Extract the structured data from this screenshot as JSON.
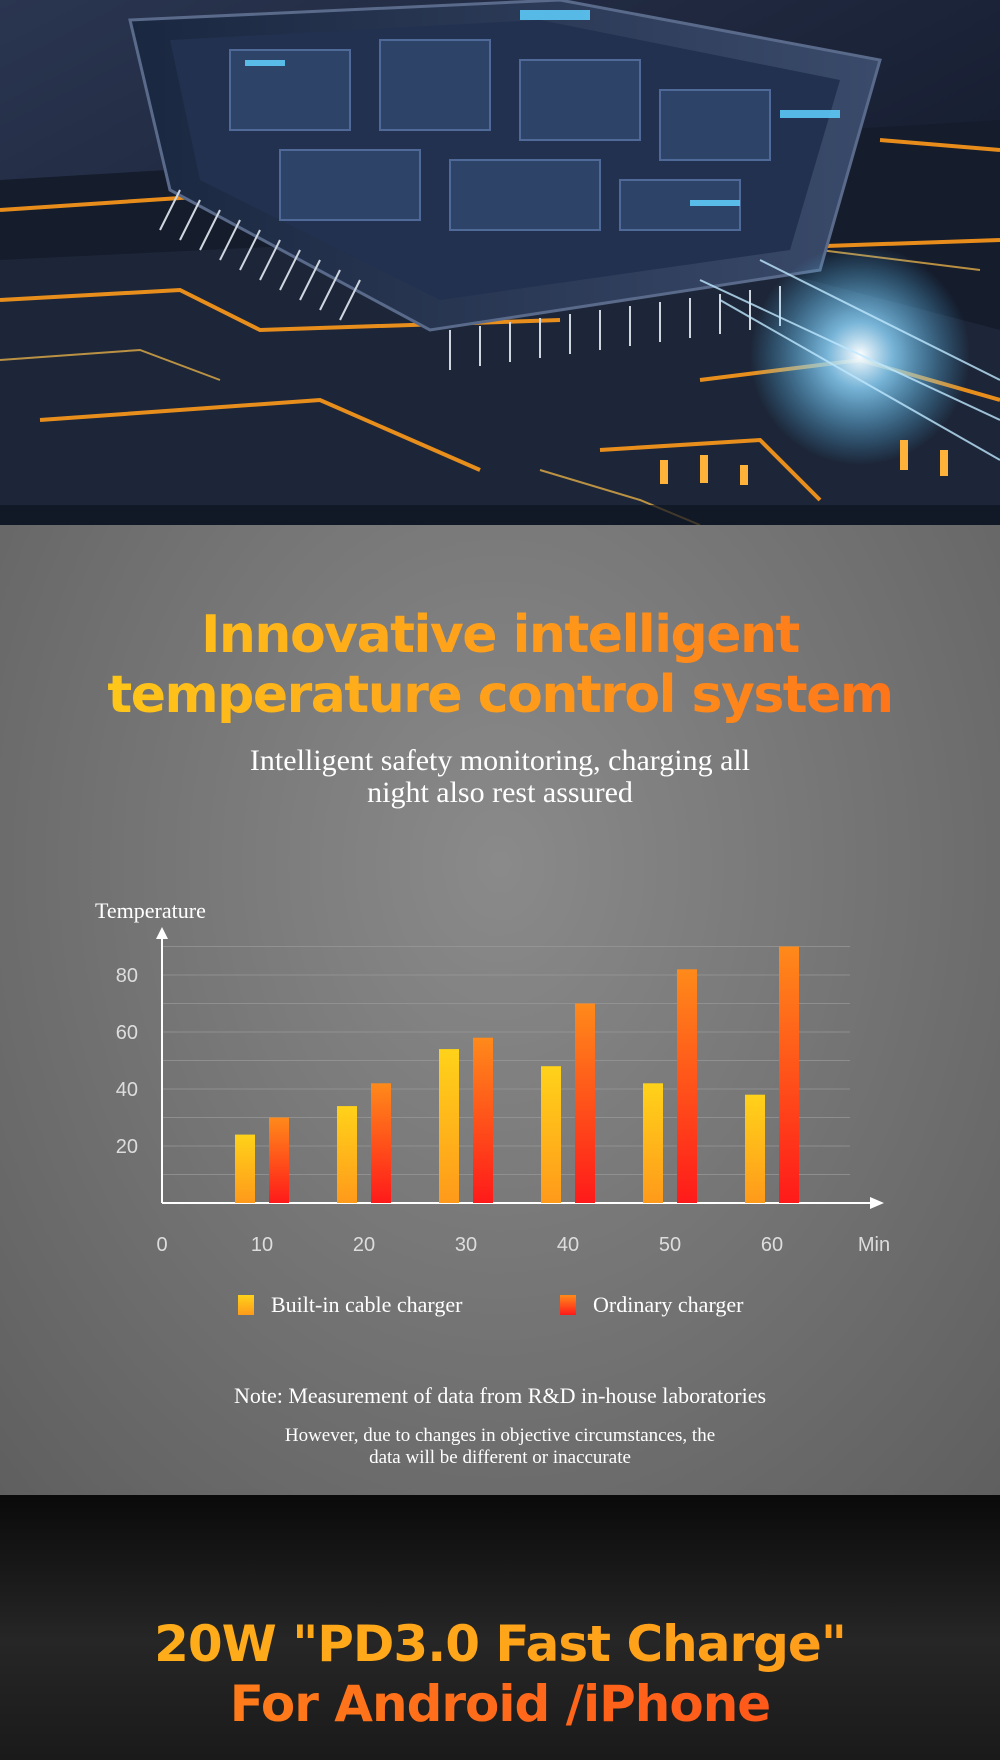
{
  "hero": {
    "image": "circuit-board-chip-illustration",
    "colors": {
      "accent_glow": "#4fc3ff",
      "accent_orange": "#ff9a1a"
    }
  },
  "headline": {
    "line1": "Innovative intelligent",
    "line2": "temperature control system"
  },
  "subheadline": {
    "line1": "Intelligent safety monitoring, charging all",
    "line2": "night also rest assured"
  },
  "chart_data": {
    "type": "bar",
    "title": "",
    "ylabel": "Temperature",
    "xlabel": "Min",
    "origin_label": "0",
    "categories": [
      "10",
      "20",
      "30",
      "40",
      "50",
      "60"
    ],
    "y_ticks": [
      "20",
      "40",
      "60",
      "80"
    ],
    "ylim": [
      0,
      100
    ],
    "grid": true,
    "legend_position": "bottom",
    "series": [
      {
        "name": "Built-in cable charger",
        "values": [
          24,
          34,
          54,
          48,
          42,
          38
        ],
        "color_top": "#ffd21a",
        "color_bottom": "#ff9a1a"
      },
      {
        "name": "Ordinary charger",
        "values": [
          30,
          42,
          58,
          70,
          82,
          90
        ],
        "color_top": "#ff8a1a",
        "color_bottom": "#ff1a1a"
      }
    ]
  },
  "notes": {
    "line1": "Note: Measurement of data from R&D in-house laboratories",
    "line2": "However, due to changes in objective circumstances, the",
    "line3": "data will be different or inaccurate"
  },
  "banner": {
    "line1": "20W \"PD3.0 Fast Charge\"",
    "line2": "For Android /iPhone"
  }
}
